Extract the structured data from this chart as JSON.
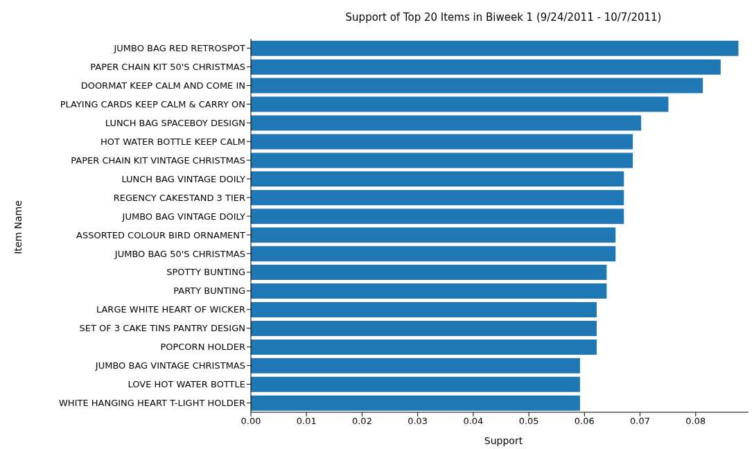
{
  "chart_data": {
    "type": "bar",
    "orientation": "horizontal",
    "title": "Support of Top 20 Items in Biweek 1 (9/24/2011 - 10/7/2011)",
    "xlabel": "Support",
    "ylabel": "Item Name",
    "categories": [
      "JUMBO BAG RED RETROSPOT",
      "PAPER CHAIN KIT 50'S CHRISTMAS ",
      "DOORMAT KEEP CALM AND COME IN",
      "PLAYING CARDS KEEP CALM & CARRY ON",
      "LUNCH BAG SPACEBOY DESIGN ",
      "HOT WATER BOTTLE KEEP CALM",
      "PAPER CHAIN KIT VINTAGE CHRISTMAS",
      "LUNCH BAG VINTAGE DOILY ",
      "REGENCY CAKESTAND 3 TIER",
      "JUMBO BAG VINTAGE DOILY ",
      "ASSORTED COLOUR BIRD ORNAMENT",
      "JUMBO BAG 50'S CHRISTMAS ",
      "SPOTTY BUNTING",
      "PARTY BUNTING",
      "LARGE WHITE HEART OF WICKER",
      "SET OF 3 CAKE TINS PANTRY DESIGN ",
      "POPCORN HOLDER",
      "JUMBO BAG VINTAGE CHRISTMAS ",
      "LOVE HOT WATER BOTTLE",
      "WHITE HANGING HEART T-LIGHT HOLDER"
    ],
    "values": [
      0.0877,
      0.0845,
      0.0813,
      0.0751,
      0.0702,
      0.0687,
      0.0687,
      0.0671,
      0.0671,
      0.0671,
      0.0656,
      0.0656,
      0.064,
      0.064,
      0.0622,
      0.0622,
      0.0622,
      0.0592,
      0.0592,
      0.0592
    ],
    "color": "#1f77b4",
    "xlim": [
      0,
      0.0895
    ],
    "xticks": [
      {
        "value": 0,
        "label": "0.00"
      },
      {
        "value": 0.01,
        "label": "0.01"
      },
      {
        "value": 0.02,
        "label": "0.02"
      },
      {
        "value": 0.03,
        "label": "0.03"
      },
      {
        "value": 0.04,
        "label": "0.04"
      },
      {
        "value": 0.05,
        "label": "0.05"
      },
      {
        "value": 0.06,
        "label": "0.06"
      },
      {
        "value": 0.07,
        "label": "0.07"
      },
      {
        "value": 0.08,
        "label": "0.08"
      }
    ]
  }
}
